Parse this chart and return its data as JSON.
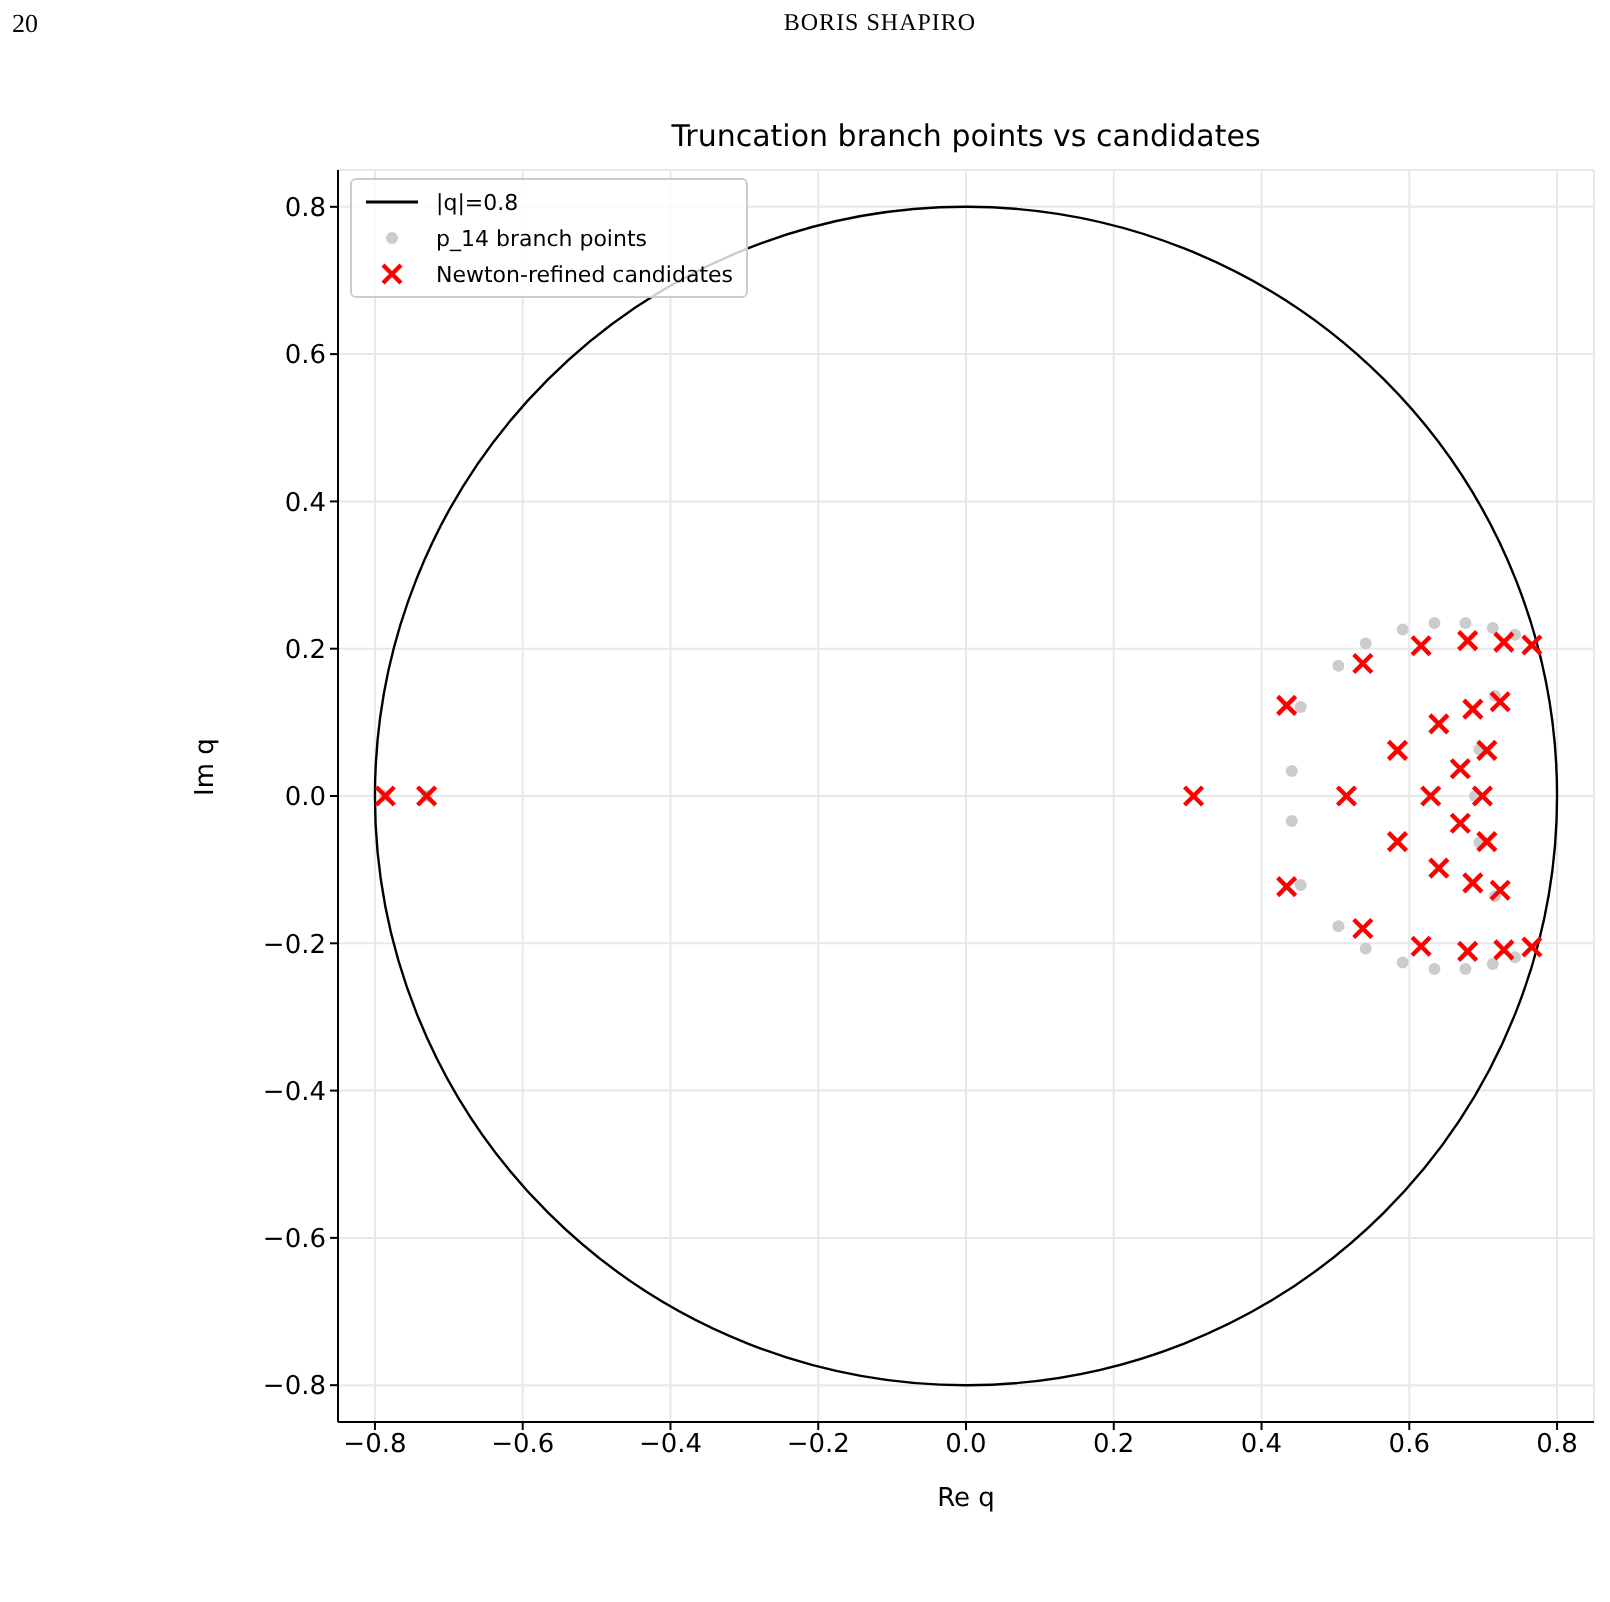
{
  "chart_data": {
    "type": "scatter",
    "title": "Truncation branch points vs candidates",
    "xlabel": "Re q",
    "ylabel": "Im q",
    "annotations": [
      "20",
      "BORIS SHAPIRO",
      "|q|=0.8"
    ],
    "xlim": [
      -0.85,
      0.85
    ],
    "ylim": [
      -0.85,
      0.85
    ],
    "xticks": [
      {
        "value": -0.8,
        "label": "−0.8"
      },
      {
        "value": -0.6,
        "label": "−0.6"
      },
      {
        "value": -0.4,
        "label": "−0.4"
      },
      {
        "value": -0.2,
        "label": "−0.2"
      },
      {
        "value": 0,
        "label": "0.0"
      },
      {
        "value": 0.2,
        "label": "0.2"
      },
      {
        "value": 0.4,
        "label": "0.4"
      },
      {
        "value": 0.6,
        "label": "0.6"
      },
      {
        "value": 0.8,
        "label": "0.8"
      }
    ],
    "yticks": [
      {
        "value": -0.8,
        "label": "−0.8"
      },
      {
        "value": -0.6,
        "label": "−0.6"
      },
      {
        "value": -0.4,
        "label": "−0.4"
      },
      {
        "value": -0.2,
        "label": "−0.2"
      },
      {
        "value": 0,
        "label": "0.0"
      },
      {
        "value": 0.2,
        "label": "0.2"
      },
      {
        "value": 0.4,
        "label": "0.4"
      },
      {
        "value": 0.6,
        "label": "0.6"
      },
      {
        "value": 0.8,
        "label": "0.8"
      }
    ],
    "grid": true,
    "legend": "top left",
    "series": [
      {
        "name": "p_14 branch points",
        "marker": "circle",
        "color": "#cccccc",
        "x": [
          -0.786,
          -0.73,
          0.441,
          0.453,
          0.504,
          0.541,
          0.591,
          0.634,
          0.676,
          0.713,
          0.743,
          0.716,
          0.695,
          0.689,
          0.441,
          0.453,
          0.504,
          0.541,
          0.591,
          0.634,
          0.676,
          0.713,
          0.743,
          0.716,
          0.695
        ],
        "values": [
          0,
          0,
          0.034,
          0.121,
          0.177,
          0.207,
          0.226,
          0.235,
          0.235,
          0.228,
          0.219,
          0.136,
          0.063,
          0,
          -0.034,
          -0.121,
          -0.177,
          -0.207,
          -0.226,
          -0.235,
          -0.235,
          -0.228,
          -0.219,
          -0.136,
          -0.063
        ]
      },
      {
        "name": "Newton-refined candidates",
        "marker": "cross",
        "color": "#ff0000",
        "x": [
          -0.786,
          -0.73,
          0.308,
          0.515,
          0.629,
          0.699,
          0.434,
          0.537,
          0.616,
          0.679,
          0.728,
          0.766,
          0.584,
          0.64,
          0.686,
          0.723,
          0.705,
          0.669,
          0.434,
          0.537,
          0.616,
          0.679,
          0.728,
          0.766,
          0.584,
          0.64,
          0.686,
          0.723,
          0.705,
          0.669
        ],
        "values": [
          0,
          0,
          0,
          0,
          0,
          0,
          0.123,
          0.18,
          0.204,
          0.211,
          0.209,
          0.205,
          0.062,
          0.098,
          0.118,
          0.128,
          0.062,
          0.037,
          -0.123,
          -0.18,
          -0.204,
          -0.211,
          -0.209,
          -0.205,
          -0.062,
          -0.098,
          -0.118,
          -0.128,
          -0.062,
          -0.037
        ]
      }
    ]
  }
}
